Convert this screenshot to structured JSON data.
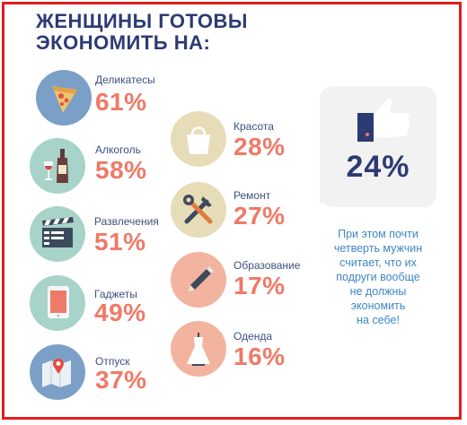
{
  "title": {
    "line1": "ЖЕНЩИНЫ ГОТОВЫ",
    "line2": "ЭКОНОМИТЬ НА:"
  },
  "categories": [
    {
      "label": "Деликатесы",
      "pct": "61%",
      "icon": "pizza-icon",
      "color": "#7ba0c8"
    },
    {
      "label": "Алкоголь",
      "pct": "58%",
      "icon": "wine-bottle-icon",
      "color": "#a7d3c8"
    },
    {
      "label": "Развлечения",
      "pct": "51%",
      "icon": "clapperboard-icon",
      "color": "#a7d3c8"
    },
    {
      "label": "Гаджеты",
      "pct": "49%",
      "icon": "tablet-icon",
      "color": "#a7d3c8"
    },
    {
      "label": "Отпуск",
      "pct": "37%",
      "icon": "map-icon",
      "color": "#7ba0c8"
    },
    {
      "label": "Красота",
      "pct": "28%",
      "icon": "shopping-bag-icon",
      "color": "#e6ddb8"
    },
    {
      "label": "Ремонт",
      "pct": "27%",
      "icon": "tools-icon",
      "color": "#e6ddb8"
    },
    {
      "label": "Образование",
      "pct": "17%",
      "icon": "pencil-icon",
      "color": "#f2b49f"
    },
    {
      "label": "Оденда",
      "pct": "16%",
      "icon": "dress-icon",
      "color": "#f2b49f"
    }
  ],
  "highlight": {
    "pct": "24%",
    "icon": "thumbs-up-icon"
  },
  "note": {
    "line1": "При этом почти",
    "line2": "четверть мужчин",
    "line3": "считает, что их",
    "line4": "подруги вообще",
    "line5": "не должны",
    "line6": "экономить",
    "line7": "на себе!"
  },
  "colors": {
    "title": "#2d3b73",
    "percent": "#ef7a67",
    "note": "#3e86c5",
    "frame": "#e11d1d"
  },
  "chart_data": {
    "type": "bar",
    "title": "ЖЕНЩИНЫ ГОТОВЫ ЭКОНОМИТЬ НА:",
    "categories": [
      "Деликатесы",
      "Алкоголь",
      "Развлечения",
      "Гаджеты",
      "Отпуск",
      "Красота",
      "Ремонт",
      "Образование",
      "Оденда"
    ],
    "values": [
      61,
      58,
      51,
      49,
      37,
      28,
      27,
      17,
      16
    ],
    "unit": "%"
  }
}
